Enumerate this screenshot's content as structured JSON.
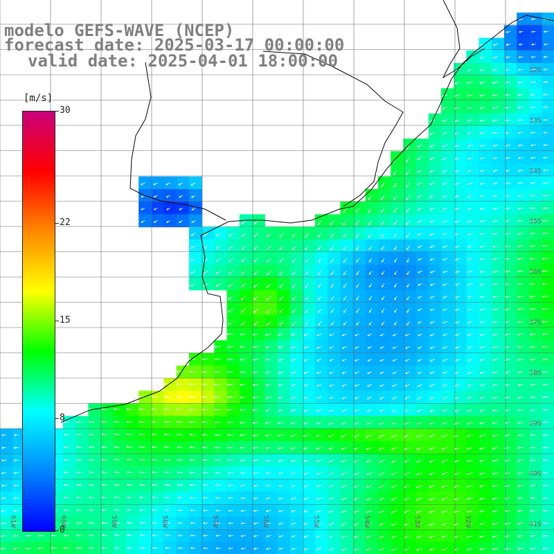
{
  "header": {
    "line1": "modelo GEFS-WAVE (NCEP)",
    "line2": "forecast date: 2025-03-17 00:00:00",
    "line3": "valid date: 2025-04-01 18:00:00"
  },
  "colorbar": {
    "unit": "[m/s]",
    "ticks": [
      "30",
      "22",
      "15",
      "8",
      "0"
    ],
    "min": 0,
    "max": 30,
    "colors": [
      "#0000ff",
      "#0088ff",
      "#00ffff",
      "#00ff00",
      "#ffff00",
      "#ff8800",
      "#ff0000",
      "#c8007a"
    ]
  },
  "map": {
    "lat_labels": [
      "32S",
      "33S",
      "34S",
      "35S",
      "36S",
      "37S",
      "38S",
      "39S",
      "40S",
      "41S"
    ],
    "lon_labels": [
      "61W",
      "60W",
      "59W",
      "58W",
      "57W",
      "56W",
      "55W",
      "54W",
      "53W",
      "52W"
    ],
    "land_color": "#ffffff",
    "variable": "wind speed"
  }
}
